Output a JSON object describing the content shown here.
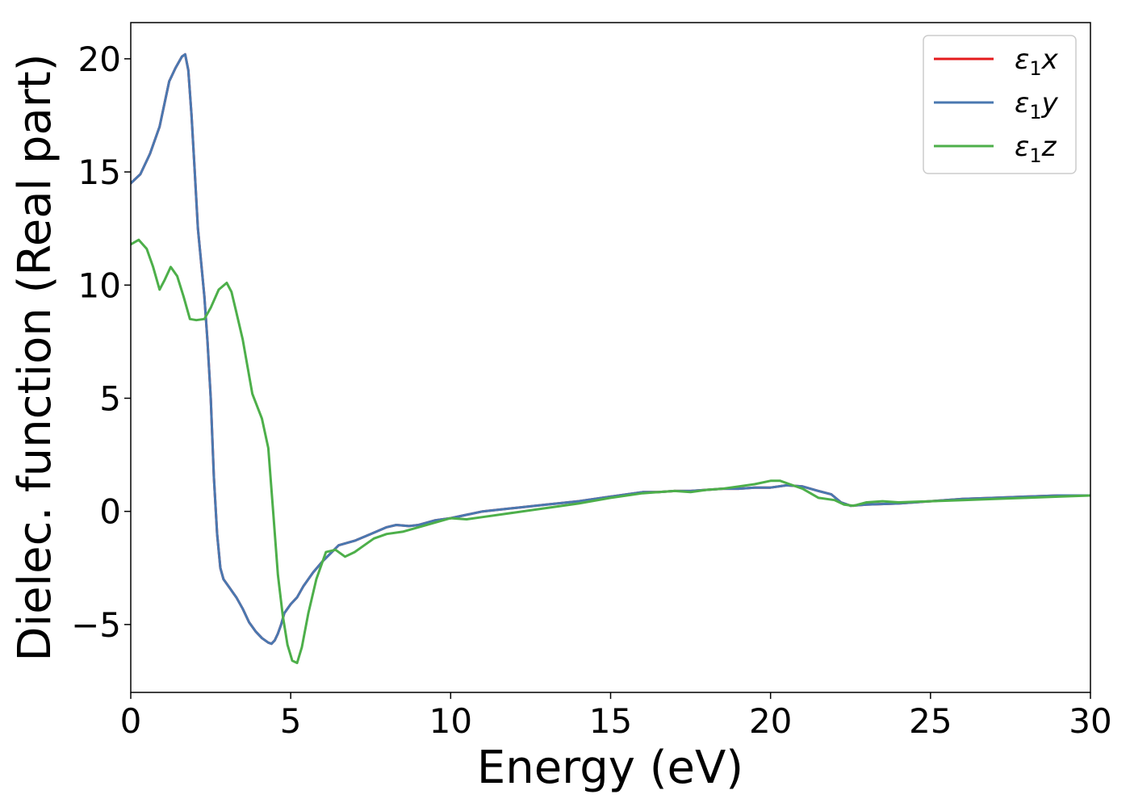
{
  "chart_data": {
    "type": "line",
    "title": "",
    "xlabel": "Energy (eV)",
    "ylabel": "Dielec. function (Real part)",
    "xlim": [
      0,
      30
    ],
    "ylim": [
      -8.0,
      21.6
    ],
    "xticks": [
      0,
      5,
      10,
      15,
      20,
      25,
      30
    ],
    "xtick_labels": [
      "0",
      "5",
      "10",
      "15",
      "20",
      "25",
      "30"
    ],
    "yticks": [
      -5,
      0,
      5,
      10,
      15,
      20
    ],
    "ytick_labels": [
      "−5",
      "0",
      "5",
      "10",
      "15",
      "20"
    ],
    "grid": false,
    "legend": {
      "position": "top-right"
    },
    "series": [
      {
        "name_prefix": "ε",
        "name_sub": "1",
        "name_suffix": "x",
        "color": "#e41a1c",
        "x": [
          0,
          0.3,
          0.6,
          0.9,
          1.2,
          1.4,
          1.6,
          1.7,
          1.8,
          1.9,
          2.0,
          2.1,
          2.2,
          2.3,
          2.4,
          2.5,
          2.6,
          2.7,
          2.8,
          2.9,
          3.0,
          3.1,
          3.2,
          3.3,
          3.5,
          3.7,
          3.9,
          4.1,
          4.3,
          4.4,
          4.5,
          4.6,
          4.7,
          4.8,
          5.0,
          5.2,
          5.4,
          5.7,
          6.0,
          6.5,
          7.0,
          7.5,
          8.0,
          8.3,
          8.7,
          9.0,
          9.5,
          10.0,
          10.5,
          11.0,
          12.0,
          13.0,
          14.0,
          15.0,
          15.5,
          16.0,
          16.5,
          17.0,
          17.5,
          18.0,
          18.5,
          19.0,
          19.5,
          20.0,
          20.5,
          21.0,
          21.5,
          21.9,
          22.2,
          22.5,
          23.0,
          24.0,
          25.0,
          26.0,
          27.0,
          28.0,
          29.0,
          30.0
        ],
        "y": [
          14.5,
          14.9,
          15.8,
          17.0,
          19.0,
          19.6,
          20.1,
          20.2,
          19.5,
          17.5,
          15.0,
          12.5,
          11.0,
          9.5,
          7.5,
          5.0,
          1.5,
          -1.0,
          -2.5,
          -3.0,
          -3.2,
          -3.4,
          -3.6,
          -3.8,
          -4.3,
          -4.9,
          -5.3,
          -5.6,
          -5.8,
          -5.85,
          -5.7,
          -5.4,
          -5.0,
          -4.5,
          -4.1,
          -3.8,
          -3.3,
          -2.7,
          -2.2,
          -1.5,
          -1.3,
          -1.0,
          -0.7,
          -0.6,
          -0.65,
          -0.6,
          -0.4,
          -0.3,
          -0.15,
          0.0,
          0.15,
          0.3,
          0.45,
          0.65,
          0.75,
          0.85,
          0.85,
          0.9,
          0.9,
          0.95,
          1.0,
          1.0,
          1.05,
          1.05,
          1.15,
          1.1,
          0.9,
          0.75,
          0.4,
          0.25,
          0.3,
          0.35,
          0.45,
          0.55,
          0.6,
          0.65,
          0.7,
          0.7
        ]
      },
      {
        "name_prefix": "ε",
        "name_sub": "1",
        "name_suffix": "y",
        "color": "#4a78b0",
        "x": [
          0,
          0.3,
          0.6,
          0.9,
          1.2,
          1.4,
          1.6,
          1.7,
          1.8,
          1.9,
          2.0,
          2.1,
          2.2,
          2.3,
          2.4,
          2.5,
          2.6,
          2.7,
          2.8,
          2.9,
          3.0,
          3.1,
          3.2,
          3.3,
          3.5,
          3.7,
          3.9,
          4.1,
          4.3,
          4.4,
          4.5,
          4.6,
          4.7,
          4.8,
          5.0,
          5.2,
          5.4,
          5.7,
          6.0,
          6.5,
          7.0,
          7.5,
          8.0,
          8.3,
          8.7,
          9.0,
          9.5,
          10.0,
          10.5,
          11.0,
          12.0,
          13.0,
          14.0,
          15.0,
          15.5,
          16.0,
          16.5,
          17.0,
          17.5,
          18.0,
          18.5,
          19.0,
          19.5,
          20.0,
          20.5,
          21.0,
          21.5,
          21.9,
          22.2,
          22.5,
          23.0,
          24.0,
          25.0,
          26.0,
          27.0,
          28.0,
          29.0,
          30.0
        ],
        "y": [
          14.5,
          14.9,
          15.8,
          17.0,
          19.0,
          19.6,
          20.1,
          20.2,
          19.5,
          17.5,
          15.0,
          12.5,
          11.0,
          9.5,
          7.5,
          5.0,
          1.5,
          -1.0,
          -2.5,
          -3.0,
          -3.2,
          -3.4,
          -3.6,
          -3.8,
          -4.3,
          -4.9,
          -5.3,
          -5.6,
          -5.8,
          -5.85,
          -5.7,
          -5.4,
          -5.0,
          -4.5,
          -4.1,
          -3.8,
          -3.3,
          -2.7,
          -2.2,
          -1.5,
          -1.3,
          -1.0,
          -0.7,
          -0.6,
          -0.65,
          -0.6,
          -0.4,
          -0.3,
          -0.15,
          0.0,
          0.15,
          0.3,
          0.45,
          0.65,
          0.75,
          0.85,
          0.85,
          0.9,
          0.9,
          0.95,
          1.0,
          1.0,
          1.05,
          1.05,
          1.15,
          1.1,
          0.9,
          0.75,
          0.4,
          0.25,
          0.3,
          0.35,
          0.45,
          0.55,
          0.6,
          0.65,
          0.7,
          0.7
        ]
      },
      {
        "name_prefix": "ε",
        "name_sub": "1",
        "name_suffix": "z",
        "color": "#4daf4a",
        "x": [
          0,
          0.25,
          0.5,
          0.7,
          0.9,
          1.05,
          1.25,
          1.45,
          1.65,
          1.85,
          2.05,
          2.3,
          2.5,
          2.75,
          3.0,
          3.15,
          3.3,
          3.5,
          3.8,
          4.1,
          4.3,
          4.45,
          4.6,
          4.75,
          4.9,
          5.05,
          5.2,
          5.35,
          5.55,
          5.8,
          6.1,
          6.4,
          6.7,
          7.0,
          7.3,
          7.6,
          8.0,
          8.5,
          9.0,
          9.5,
          10.0,
          10.5,
          11.0,
          12.0,
          13.0,
          14.0,
          15.0,
          16.0,
          16.5,
          17.0,
          17.5,
          18.0,
          18.5,
          19.0,
          19.5,
          20.0,
          20.3,
          20.6,
          21.0,
          21.5,
          22.0,
          22.3,
          22.6,
          23.0,
          23.5,
          24.0,
          25.0,
          26.0,
          27.0,
          28.0,
          29.0,
          30.0
        ],
        "y": [
          11.8,
          12.0,
          11.6,
          10.8,
          9.8,
          10.2,
          10.8,
          10.4,
          9.5,
          8.5,
          8.45,
          8.5,
          9.0,
          9.8,
          10.1,
          9.7,
          8.8,
          7.6,
          5.2,
          4.1,
          2.8,
          0.0,
          -2.8,
          -4.6,
          -5.9,
          -6.6,
          -6.7,
          -6.0,
          -4.5,
          -3.0,
          -1.8,
          -1.7,
          -2.0,
          -1.8,
          -1.5,
          -1.2,
          -1.0,
          -0.9,
          -0.7,
          -0.5,
          -0.3,
          -0.35,
          -0.25,
          -0.05,
          0.15,
          0.35,
          0.6,
          0.8,
          0.85,
          0.9,
          0.85,
          0.95,
          1.0,
          1.1,
          1.2,
          1.35,
          1.35,
          1.2,
          1.0,
          0.6,
          0.5,
          0.3,
          0.25,
          0.4,
          0.45,
          0.4,
          0.45,
          0.5,
          0.55,
          0.6,
          0.65,
          0.7
        ]
      }
    ]
  }
}
